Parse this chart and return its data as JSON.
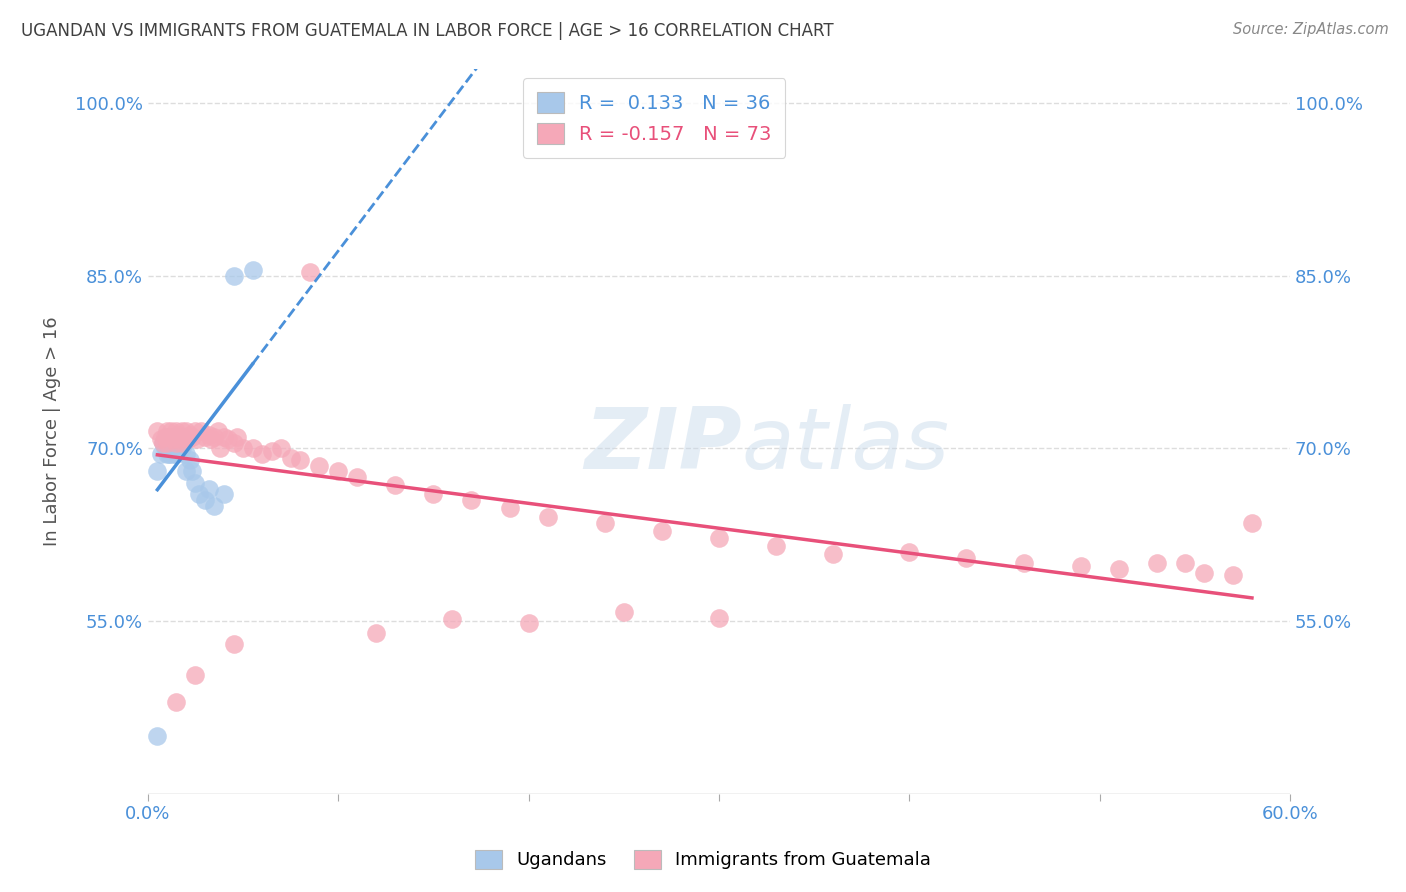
{
  "title": "UGANDAN VS IMMIGRANTS FROM GUATEMALA IN LABOR FORCE | AGE > 16 CORRELATION CHART",
  "source": "Source: ZipAtlas.com",
  "ylabel": "In Labor Force | Age > 16",
  "xlim": [
    0.0,
    0.6
  ],
  "ylim": [
    0.4,
    1.03
  ],
  "x_ticks": [
    0.0,
    0.1,
    0.2,
    0.3,
    0.4,
    0.5,
    0.6
  ],
  "x_tick_labels": [
    "0.0%",
    "",
    "",
    "",
    "",
    "",
    "60.0%"
  ],
  "y_ticks": [
    0.55,
    0.7,
    0.85,
    1.0
  ],
  "y_tick_labels": [
    "55.0%",
    "70.0%",
    "85.0%",
    "100.0%"
  ],
  "legend_r1": "R =  0.133   N = 36",
  "legend_r2": "R = -0.157   N = 73",
  "blue_color": "#a8c8ea",
  "pink_color": "#f5a8b8",
  "blue_line_color": "#4a90d9",
  "pink_line_color": "#e8507a",
  "grid_color": "#dddddd",
  "title_color": "#404040",
  "axis_label_color": "#4a90d9",
  "watermark": "ZIPatlas",
  "ugandan_x": [
    0.005,
    0.007,
    0.008,
    0.009,
    0.01,
    0.01,
    0.01,
    0.011,
    0.011,
    0.012,
    0.012,
    0.013,
    0.013,
    0.014,
    0.014,
    0.015,
    0.015,
    0.015,
    0.016,
    0.017,
    0.018,
    0.018,
    0.019,
    0.02,
    0.02,
    0.022,
    0.023,
    0.025,
    0.027,
    0.03,
    0.032,
    0.035,
    0.04,
    0.045,
    0.055,
    0.005
  ],
  "ugandan_y": [
    0.68,
    0.695,
    0.705,
    0.7,
    0.71,
    0.7,
    0.695,
    0.705,
    0.695,
    0.705,
    0.695,
    0.71,
    0.7,
    0.705,
    0.695,
    0.71,
    0.7,
    0.695,
    0.705,
    0.7,
    0.71,
    0.7,
    0.705,
    0.695,
    0.68,
    0.69,
    0.68,
    0.67,
    0.66,
    0.655,
    0.665,
    0.65,
    0.66,
    0.85,
    0.855,
    0.45
  ],
  "guatemala_x": [
    0.005,
    0.007,
    0.008,
    0.009,
    0.01,
    0.01,
    0.011,
    0.012,
    0.013,
    0.014,
    0.015,
    0.015,
    0.016,
    0.017,
    0.018,
    0.018,
    0.019,
    0.02,
    0.021,
    0.022,
    0.023,
    0.025,
    0.026,
    0.028,
    0.03,
    0.032,
    0.033,
    0.035,
    0.037,
    0.038,
    0.04,
    0.042,
    0.045,
    0.047,
    0.05,
    0.055,
    0.06,
    0.065,
    0.07,
    0.075,
    0.08,
    0.09,
    0.1,
    0.11,
    0.13,
    0.15,
    0.17,
    0.19,
    0.21,
    0.24,
    0.27,
    0.3,
    0.33,
    0.36,
    0.4,
    0.43,
    0.46,
    0.49,
    0.51,
    0.53,
    0.545,
    0.555,
    0.57,
    0.58,
    0.3,
    0.25,
    0.2,
    0.16,
    0.12,
    0.085,
    0.045,
    0.025,
    0.015
  ],
  "guatemala_y": [
    0.715,
    0.708,
    0.705,
    0.71,
    0.715,
    0.705,
    0.71,
    0.715,
    0.708,
    0.71,
    0.715,
    0.705,
    0.712,
    0.708,
    0.715,
    0.705,
    0.71,
    0.715,
    0.708,
    0.712,
    0.71,
    0.715,
    0.708,
    0.715,
    0.71,
    0.712,
    0.708,
    0.71,
    0.715,
    0.7,
    0.71,
    0.708,
    0.705,
    0.71,
    0.7,
    0.7,
    0.695,
    0.698,
    0.7,
    0.692,
    0.69,
    0.685,
    0.68,
    0.675,
    0.668,
    0.66,
    0.655,
    0.648,
    0.64,
    0.635,
    0.628,
    0.622,
    0.615,
    0.608,
    0.61,
    0.605,
    0.6,
    0.598,
    0.595,
    0.6,
    0.6,
    0.592,
    0.59,
    0.635,
    0.553,
    0.558,
    0.548,
    0.552,
    0.54,
    0.853,
    0.53,
    0.503,
    0.48
  ]
}
